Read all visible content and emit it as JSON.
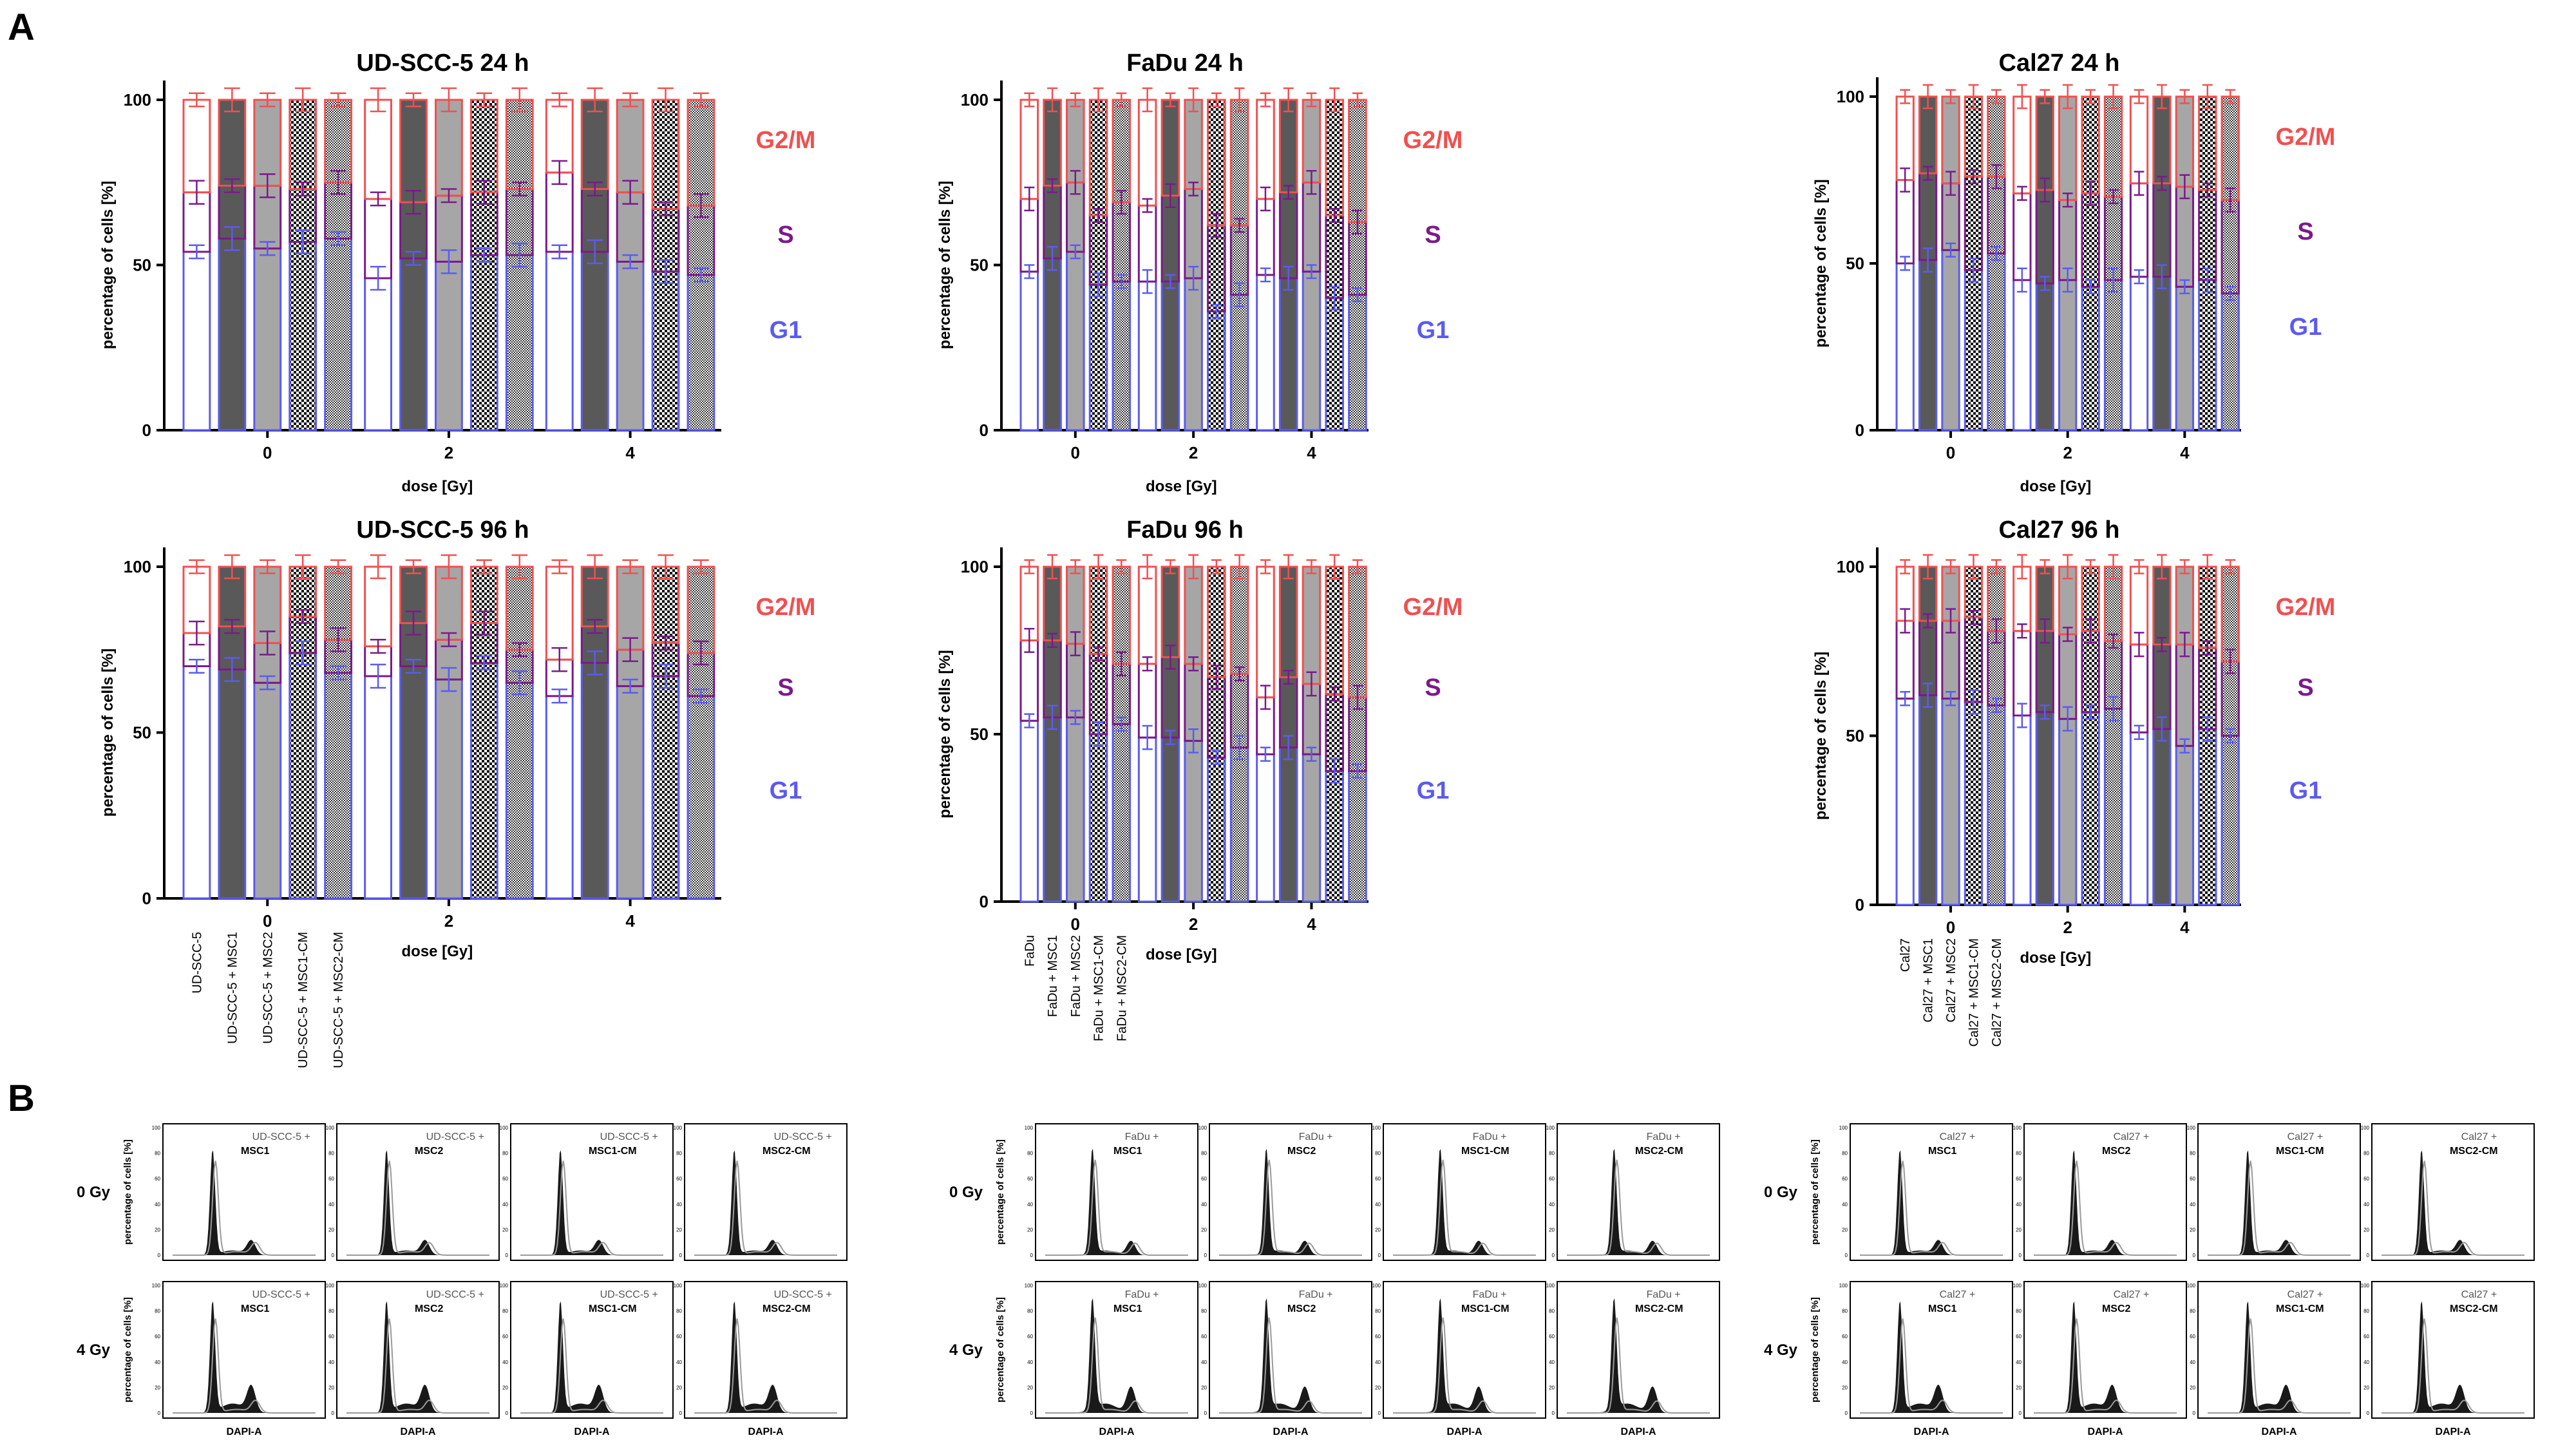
{
  "panels": {
    "a": "A",
    "b": "B"
  },
  "colors": {
    "g1": "#5b5bf0",
    "s": "#7a1a8a",
    "g2m": "#f05050",
    "dark": "#595959",
    "mid": "#a6a6a6",
    "black": "#000000"
  },
  "chart_data": [
    {
      "type": "bar",
      "stacked": true,
      "title": "UD-SCC-5 24 h",
      "xlabel": "dose [Gy]",
      "ylabel": "percentage of cells [%]",
      "ylim": [
        0,
        100
      ],
      "yticks": [
        "0",
        "50",
        "100"
      ],
      "categories": [
        "0",
        "2",
        "4"
      ],
      "phase_labels": [
        "G2/M",
        "S",
        "G1"
      ],
      "series": [
        {
          "name": "UD-SCC-5",
          "pattern": "white",
          "g1": [
            54,
            46,
            54
          ],
          "s_top": [
            72,
            70,
            78
          ],
          "total": [
            100,
            100,
            100
          ]
        },
        {
          "name": "UD-SCC-5 + MSC1",
          "pattern": "dark",
          "g1": [
            58,
            52,
            54
          ],
          "s_top": [
            74,
            69,
            73
          ],
          "total": [
            100,
            100,
            100
          ]
        },
        {
          "name": "UD-SCC-5 + MSC2",
          "pattern": "light",
          "g1": [
            55,
            51,
            51
          ],
          "s_top": [
            74,
            71,
            72
          ],
          "total": [
            100,
            100,
            100
          ]
        },
        {
          "name": "UD-SCC-5 + MSC1-CM",
          "pattern": "checker",
          "g1": [
            57,
            53,
            48
          ],
          "s_top": [
            73,
            72,
            67
          ],
          "total": [
            100,
            100,
            100
          ]
        },
        {
          "name": "UD-SCC-5 + MSC2-CM",
          "pattern": "fine",
          "g1": [
            58,
            53,
            47
          ],
          "s_top": [
            75,
            73,
            68
          ],
          "total": [
            100,
            100,
            100
          ]
        }
      ]
    },
    {
      "type": "bar",
      "stacked": true,
      "title": "FaDu 24 h",
      "xlabel": "dose [Gy]",
      "ylabel": "percentage of cells [%]",
      "ylim": [
        0,
        100
      ],
      "yticks": [
        "0",
        "50",
        "100"
      ],
      "categories": [
        "0",
        "2",
        "4"
      ],
      "phase_labels": [
        "G2/M",
        "S",
        "G1"
      ],
      "series": [
        {
          "name": "FaDu",
          "pattern": "white",
          "g1": [
            48,
            45,
            47
          ],
          "s_top": [
            70,
            68,
            70
          ],
          "total": [
            100,
            100,
            100
          ]
        },
        {
          "name": "FaDu + MSC1",
          "pattern": "dark",
          "g1": [
            52,
            45,
            46
          ],
          "s_top": [
            74,
            71,
            72
          ],
          "total": [
            100,
            100,
            100
          ]
        },
        {
          "name": "FaDu + MSC2",
          "pattern": "light",
          "g1": [
            54,
            46,
            48
          ],
          "s_top": [
            75,
            73,
            75
          ],
          "total": [
            100,
            100,
            100
          ]
        },
        {
          "name": "FaDu + MSC1-CM",
          "pattern": "checker",
          "g1": [
            44,
            36,
            40
          ],
          "s_top": [
            65,
            62,
            65
          ],
          "total": [
            100,
            100,
            100
          ]
        },
        {
          "name": "FaDu + MSC2-CM",
          "pattern": "fine",
          "g1": [
            45,
            41,
            41
          ],
          "s_top": [
            69,
            62,
            63
          ],
          "total": [
            100,
            100,
            100
          ]
        }
      ]
    },
    {
      "type": "bar",
      "stacked": true,
      "title": "Cal27 24 h",
      "xlabel": "dose [Gy]",
      "ylabel": "percentage of cells [%]",
      "ylim": [
        0,
        100
      ],
      "yticks": [
        "0",
        "50",
        "100"
      ],
      "categories": [
        "0",
        "2",
        "4"
      ],
      "phase_labels": [
        "G2/M",
        "S",
        "G1"
      ],
      "series": [
        {
          "name": "Cal27",
          "pattern": "white",
          "g1": [
            50,
            45,
            46
          ],
          "s_top": [
            75,
            71,
            74
          ],
          "total": [
            100,
            100,
            100
          ]
        },
        {
          "name": "Cal27 + MSC1",
          "pattern": "dark",
          "g1": [
            51,
            44,
            46
          ],
          "s_top": [
            77,
            72,
            74
          ],
          "total": [
            100,
            100,
            100
          ]
        },
        {
          "name": "Cal27 + MSC2",
          "pattern": "light",
          "g1": [
            54,
            45,
            43
          ],
          "s_top": [
            74,
            69,
            73
          ],
          "total": [
            100,
            100,
            100
          ]
        },
        {
          "name": "Cal27 + MSC1-CM",
          "pattern": "checker",
          "g1": [
            48,
            43,
            45
          ],
          "s_top": [
            76,
            71,
            72
          ],
          "total": [
            100,
            100,
            100
          ]
        },
        {
          "name": "Cal27 + MSC2-CM",
          "pattern": "fine",
          "g1": [
            53,
            45,
            41
          ],
          "s_top": [
            76,
            70,
            69
          ],
          "total": [
            100,
            100,
            100
          ]
        }
      ]
    },
    {
      "type": "bar",
      "stacked": true,
      "title": "UD-SCC-5 96 h",
      "xlabel": "dose [Gy]",
      "ylabel": "percentage of cells [%]",
      "ylim": [
        0,
        100
      ],
      "yticks": [
        "0",
        "50",
        "100"
      ],
      "categories": [
        "0",
        "2",
        "4"
      ],
      "phase_labels": [
        "G2/M",
        "S",
        "G1"
      ],
      "series": [
        {
          "name": "UD-SCC-5",
          "pattern": "white",
          "g1": [
            70,
            67,
            61
          ],
          "s_top": [
            80,
            76,
            72
          ],
          "total": [
            100,
            100,
            100
          ]
        },
        {
          "name": "UD-SCC-5 + MSC1",
          "pattern": "dark",
          "g1": [
            69,
            70,
            71
          ],
          "s_top": [
            82,
            83,
            82
          ],
          "total": [
            100,
            100,
            100
          ]
        },
        {
          "name": "UD-SCC-5 + MSC2",
          "pattern": "light",
          "g1": [
            65,
            66,
            64
          ],
          "s_top": [
            77,
            78,
            75
          ],
          "total": [
            100,
            100,
            100
          ]
        },
        {
          "name": "UD-SCC-5 + MSC1-CM",
          "pattern": "checker",
          "g1": [
            74,
            71,
            67
          ],
          "s_top": [
            85,
            83,
            77
          ],
          "total": [
            100,
            100,
            100
          ]
        },
        {
          "name": "UD-SCC-5 + MSC2-CM",
          "pattern": "fine",
          "g1": [
            68,
            65,
            61
          ],
          "s_top": [
            78,
            75,
            74
          ],
          "total": [
            100,
            100,
            100
          ]
        }
      ]
    },
    {
      "type": "bar",
      "stacked": true,
      "title": "FaDu 96 h",
      "xlabel": "dose [Gy]",
      "ylabel": "percentage of cells [%]",
      "ylim": [
        0,
        100
      ],
      "yticks": [
        "0",
        "50",
        "100"
      ],
      "categories": [
        "0",
        "2",
        "4"
      ],
      "phase_labels": [
        "G2/M",
        "S",
        "G1"
      ],
      "series": [
        {
          "name": "FaDu",
          "pattern": "white",
          "g1": [
            54,
            49,
            44
          ],
          "s_top": [
            78,
            71,
            61
          ],
          "total": [
            100,
            100,
            100
          ]
        },
        {
          "name": "FaDu + MSC1",
          "pattern": "dark",
          "g1": [
            55,
            49,
            46
          ],
          "s_top": [
            78,
            73,
            67
          ],
          "total": [
            100,
            100,
            100
          ]
        },
        {
          "name": "FaDu + MSC2",
          "pattern": "light",
          "g1": [
            55,
            48,
            44
          ],
          "s_top": [
            77,
            71,
            65
          ],
          "total": [
            100,
            100,
            100
          ]
        },
        {
          "name": "FaDu + MSC1-CM",
          "pattern": "checker",
          "g1": [
            50,
            43,
            39
          ],
          "s_top": [
            74,
            67,
            62
          ],
          "total": [
            100,
            100,
            100
          ]
        },
        {
          "name": "FaDu + MSC2-CM",
          "pattern": "fine",
          "g1": [
            53,
            46,
            39
          ],
          "s_top": [
            71,
            68,
            61
          ],
          "total": [
            100,
            100,
            100
          ]
        }
      ]
    },
    {
      "type": "bar",
      "stacked": true,
      "title": "Cal27 96 h",
      "xlabel": "dose [Gy]",
      "ylabel": "percentage of cells [%]",
      "ylim": [
        0,
        100
      ],
      "yticks": [
        "0",
        "50",
        "100"
      ],
      "categories": [
        "0",
        "2",
        "4"
      ],
      "phase_labels": [
        "G2/M",
        "S",
        "G1"
      ],
      "series": [
        {
          "name": "Cal27",
          "pattern": "white",
          "g1": [
            61,
            56,
            51
          ],
          "s_top": [
            84,
            81,
            77
          ],
          "total": [
            100,
            100,
            100
          ]
        },
        {
          "name": "Cal27 + MSC1",
          "pattern": "dark",
          "g1": [
            62,
            57,
            52
          ],
          "s_top": [
            84,
            81,
            77
          ],
          "total": [
            100,
            100,
            100
          ]
        },
        {
          "name": "Cal27 + MSC2",
          "pattern": "light",
          "g1": [
            61,
            55,
            47
          ],
          "s_top": [
            84,
            80,
            77
          ],
          "total": [
            100,
            100,
            100
          ]
        },
        {
          "name": "Cal27 + MSC1-CM",
          "pattern": "checker",
          "g1": [
            60,
            57,
            52
          ],
          "s_top": [
            85,
            81,
            76
          ],
          "total": [
            100,
            100,
            100
          ]
        },
        {
          "name": "Cal27 + MSC2-CM",
          "pattern": "fine",
          "g1": [
            59,
            58,
            50
          ],
          "s_top": [
            81,
            78,
            72
          ],
          "total": [
            100,
            100,
            100
          ]
        }
      ]
    }
  ],
  "histograms": {
    "row_labels": [
      "0 Gy",
      "4 Gy"
    ],
    "ylabel": "percentage of cells [%]",
    "xlabel": "DAPI-A",
    "groups": [
      {
        "prefix": "UD-SCC-5 +",
        "conditions": [
          "MSC1",
          "MSC2",
          "MSC1-CM",
          "MSC2-CM"
        ]
      },
      {
        "prefix": "FaDu +",
        "conditions": [
          "MSC1",
          "MSC2",
          "MSC1-CM",
          "MSC2-CM"
        ]
      },
      {
        "prefix": "Cal27 +",
        "conditions": [
          "MSC1",
          "MSC2",
          "MSC1-CM",
          "MSC2-CM"
        ]
      }
    ]
  }
}
